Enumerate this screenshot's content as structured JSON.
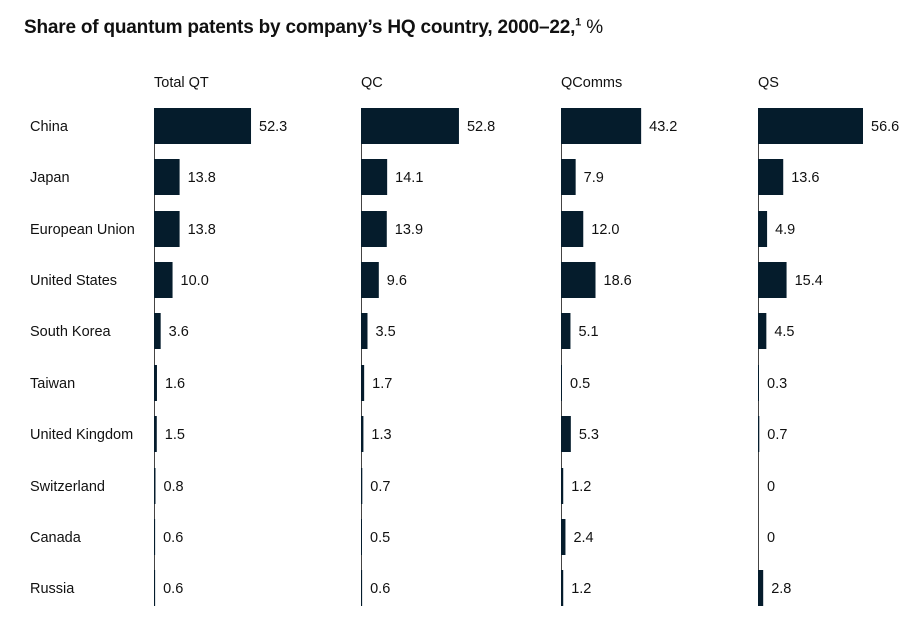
{
  "title": {
    "text": "Share of quantum patents by company’s HQ country, 2000–22,",
    "footnote": "1",
    "unit": "%"
  },
  "colors": {
    "bar": "#051c2c",
    "axis": "#444444",
    "text": "#111111"
  },
  "chart_data": {
    "type": "bar",
    "orientation": "horizontal",
    "categories": [
      "China",
      "Japan",
      "European Union",
      "United States",
      "South Korea",
      "Taiwan",
      "United Kingdom",
      "Switzerland",
      "Canada",
      "Russia"
    ],
    "series": [
      {
        "name": "Total QT",
        "values": [
          52.3,
          13.8,
          13.8,
          10.0,
          3.6,
          1.6,
          1.5,
          0.8,
          0.6,
          0.6
        ],
        "labels": [
          "52.3",
          "13.8",
          "13.8",
          "10.0",
          "3.6",
          "1.6",
          "1.5",
          "0.8",
          "0.6",
          "0.6"
        ]
      },
      {
        "name": "QC",
        "values": [
          52.8,
          14.1,
          13.9,
          9.6,
          3.5,
          1.7,
          1.3,
          0.7,
          0.5,
          0.6
        ],
        "labels": [
          "52.8",
          "14.1",
          "13.9",
          "9.6",
          "3.5",
          "1.7",
          "1.3",
          "0.7",
          "0.5",
          "0.6"
        ]
      },
      {
        "name": "QComms",
        "values": [
          43.2,
          7.9,
          12.0,
          18.6,
          5.1,
          0.5,
          5.3,
          1.2,
          2.4,
          1.2
        ],
        "labels": [
          "43.2",
          "7.9",
          "12.0",
          "18.6",
          "5.1",
          "0.5",
          "5.3",
          "1.2",
          "2.4",
          "1.2"
        ]
      },
      {
        "name": "QS",
        "values": [
          56.6,
          13.6,
          4.9,
          15.4,
          4.5,
          0.3,
          0.7,
          0,
          0,
          2.8
        ],
        "labels": [
          "56.6",
          "13.6",
          "4.9",
          "15.4",
          "4.5",
          "0.3",
          "0.7",
          "0",
          "0",
          "2.8"
        ]
      }
    ],
    "xlim": [
      0,
      60
    ],
    "legend": "none",
    "grid": false
  }
}
